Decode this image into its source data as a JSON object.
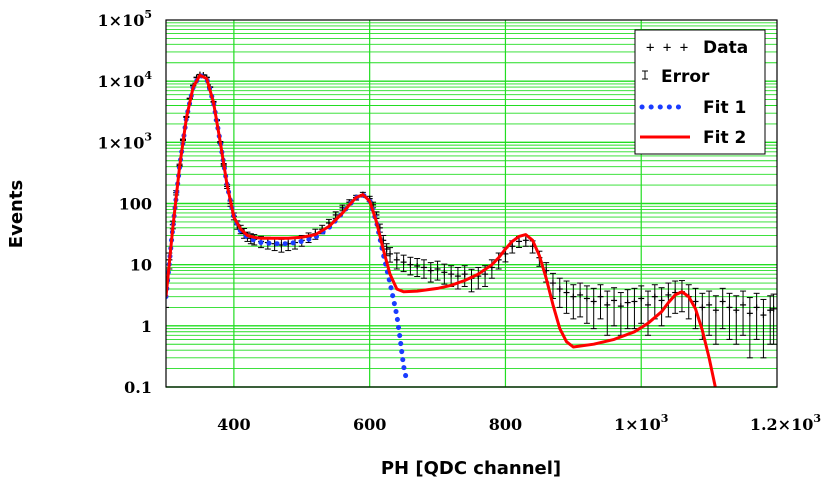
{
  "chart_data": {
    "type": "line",
    "title": "",
    "xlabel": "PH [QDC channel]",
    "ylabel": "Events",
    "xlim": [
      300,
      1200
    ],
    "ylim": [
      0.1,
      100000
    ],
    "yscale": "log",
    "grid": true,
    "grid_color": "#22dd22",
    "legend_position": "top-right",
    "x_ticks": [
      {
        "value": 400,
        "label": "400"
      },
      {
        "value": 600,
        "label": "600"
      },
      {
        "value": 800,
        "label": "800"
      },
      {
        "value": 1000,
        "mantissa": "1×10",
        "exp": "3"
      },
      {
        "value": 1200,
        "mantissa": "1.2×10",
        "exp": "3"
      }
    ],
    "y_ticks": [
      {
        "value": 0.1,
        "label": "0.1"
      },
      {
        "value": 1,
        "label": "1"
      },
      {
        "value": 10,
        "label": "10"
      },
      {
        "value": 100,
        "label": "100"
      },
      {
        "value": 1000,
        "mantissa": "1×10",
        "exp": "3"
      },
      {
        "value": 10000,
        "mantissa": "1×10",
        "exp": "4"
      },
      {
        "value": 100000,
        "mantissa": "1×10",
        "exp": "5"
      }
    ],
    "legend": {
      "data": "Data",
      "error": "Error",
      "fit1": "Fit 1",
      "fit2": "Fit 2"
    },
    "series": [
      {
        "key": "fit1",
        "color": "#1a3cff",
        "style": "dotted",
        "x": [
          300,
          310,
          320,
          330,
          340,
          350,
          360,
          370,
          380,
          390,
          400,
          410,
          420,
          430,
          440,
          460,
          480,
          500,
          520,
          540,
          560,
          570,
          580,
          590,
          600,
          610,
          620,
          630,
          640,
          645,
          650,
          655
        ],
        "y": [
          3,
          40,
          400,
          2500,
          8000,
          12500,
          11000,
          4500,
          1000,
          200,
          60,
          35,
          28,
          25,
          23,
          22,
          22,
          24,
          28,
          40,
          70,
          95,
          125,
          140,
          110,
          50,
          15,
          5,
          1.5,
          0.6,
          0.22,
          0.12
        ]
      },
      {
        "key": "fit2",
        "color": "#ff0000",
        "style": "solid",
        "x": [
          300,
          310,
          320,
          330,
          340,
          350,
          360,
          370,
          380,
          390,
          400,
          410,
          420,
          430,
          440,
          460,
          480,
          500,
          520,
          540,
          560,
          570,
          580,
          590,
          600,
          610,
          620,
          630,
          640,
          650,
          670,
          700,
          720,
          740,
          760,
          780,
          790,
          800,
          810,
          820,
          830,
          840,
          850,
          860,
          870,
          880,
          890,
          900,
          930,
          960,
          990,
          1010,
          1030,
          1040,
          1050,
          1060,
          1070,
          1080,
          1090,
          1100,
          1110
        ],
        "y": [
          3,
          40,
          400,
          2500,
          8000,
          12500,
          11000,
          4500,
          1000,
          200,
          60,
          38,
          30,
          28,
          27,
          27,
          27,
          28,
          31,
          42,
          70,
          95,
          125,
          140,
          110,
          50,
          18,
          7,
          4,
          3.6,
          3.7,
          4.1,
          4.6,
          5.5,
          7,
          10,
          13,
          18,
          24,
          29,
          31,
          25,
          14,
          6,
          2.2,
          0.9,
          0.55,
          0.45,
          0.5,
          0.6,
          0.8,
          1.1,
          1.7,
          2.4,
          3.2,
          3.6,
          3.0,
          1.9,
          0.85,
          0.3,
          0.09
        ]
      },
      {
        "key": "data",
        "color": "#000000",
        "style": "points-with-error",
        "x": [
          300,
          305,
          310,
          315,
          320,
          325,
          330,
          335,
          340,
          345,
          350,
          355,
          360,
          365,
          370,
          375,
          380,
          385,
          390,
          395,
          400,
          405,
          410,
          415,
          420,
          425,
          430,
          440,
          450,
          460,
          470,
          480,
          490,
          500,
          510,
          520,
          530,
          540,
          550,
          560,
          570,
          580,
          590,
          600,
          605,
          610,
          615,
          620,
          625,
          630,
          640,
          650,
          660,
          670,
          680,
          690,
          700,
          710,
          720,
          730,
          740,
          750,
          760,
          770,
          780,
          790,
          800,
          810,
          820,
          830,
          840,
          850,
          860,
          870,
          880,
          890,
          900,
          910,
          920,
          930,
          940,
          950,
          960,
          970,
          980,
          990,
          1000,
          1010,
          1020,
          1030,
          1040,
          1050,
          1060,
          1070,
          1080,
          1090,
          1100,
          1110,
          1120,
          1130,
          1140,
          1150,
          1160,
          1170,
          1180,
          1190,
          1195
        ],
        "y": [
          4,
          12,
          45,
          150,
          420,
          1100,
          2600,
          5200,
          8500,
          11500,
          12800,
          12600,
          11500,
          8000,
          4600,
          2300,
          1000,
          430,
          190,
          100,
          62,
          45,
          38,
          33,
          29,
          27,
          26,
          24,
          23,
          22,
          21,
          22,
          23,
          25,
          28,
          32,
          38,
          48,
          65,
          85,
          105,
          125,
          140,
          120,
          95,
          65,
          40,
          25,
          18,
          15,
          12,
          11,
          10,
          9.5,
          9,
          8,
          8.5,
          7.5,
          7,
          6.5,
          7,
          6,
          6.5,
          7,
          9,
          12,
          15,
          20,
          24,
          25,
          20,
          13,
          8,
          5,
          4,
          3.5,
          3,
          3.2,
          2.8,
          2.5,
          3,
          2.2,
          2.6,
          2.1,
          2.4,
          2.5,
          2.8,
          2.2,
          3,
          2.6,
          3.2,
          3.5,
          3.6,
          3,
          2.5,
          2,
          2.2,
          1.8,
          2.5,
          2,
          1.8,
          2.2,
          1.6,
          2,
          1.5,
          1.8,
          1.9
        ],
        "err": [
          2,
          3.5,
          6.5,
          12,
          20,
          33,
          51,
          72,
          92,
          107,
          113,
          112,
          107,
          89,
          68,
          48,
          32,
          21,
          14,
          10,
          8,
          7,
          6,
          6,
          5,
          5,
          5,
          5,
          5,
          5,
          5,
          5,
          5,
          5,
          5,
          6,
          6,
          7,
          8,
          9,
          10,
          11,
          12,
          11,
          10,
          8,
          6,
          5,
          4,
          4,
          3.5,
          3.3,
          3.2,
          3.1,
          3,
          2.8,
          2.9,
          2.7,
          2.6,
          2.5,
          2.6,
          2.4,
          2.5,
          2.6,
          3,
          3.5,
          3.9,
          4.5,
          4.9,
          5,
          4.5,
          3.6,
          2.8,
          2.2,
          2,
          1.9,
          1.7,
          1.8,
          1.7,
          1.6,
          1.7,
          1.5,
          1.6,
          1.4,
          1.5,
          1.6,
          1.7,
          1.5,
          1.7,
          1.6,
          1.8,
          1.9,
          1.9,
          1.7,
          1.6,
          1.4,
          1.5,
          1.3,
          1.6,
          1.4,
          1.3,
          1.5,
          1.3,
          1.4,
          1.2,
          1.3,
          1.4
        ]
      }
    ]
  }
}
